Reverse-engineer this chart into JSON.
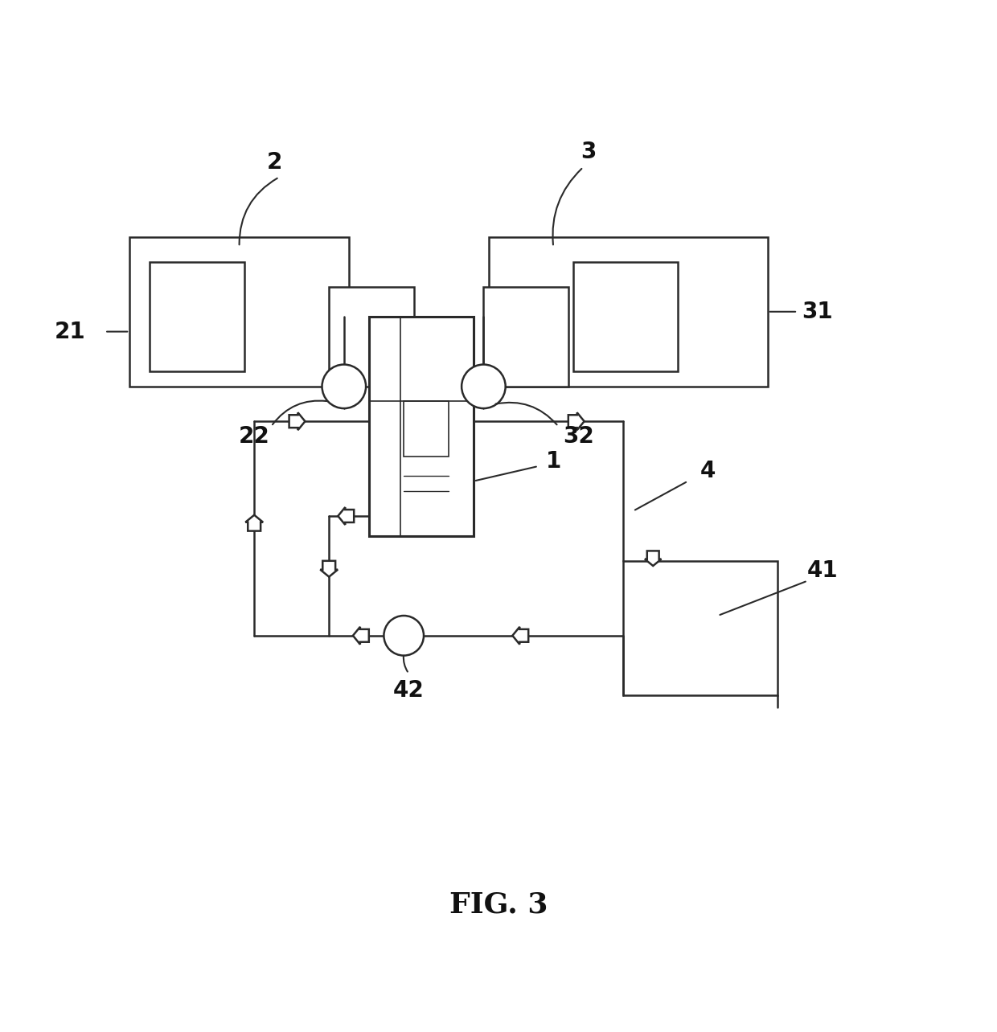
{
  "title": "FIG. 3",
  "bg_color": "#ffffff",
  "lc": "#2a2a2a",
  "fig_width": 12.4,
  "fig_height": 12.84,
  "dpi": 100
}
